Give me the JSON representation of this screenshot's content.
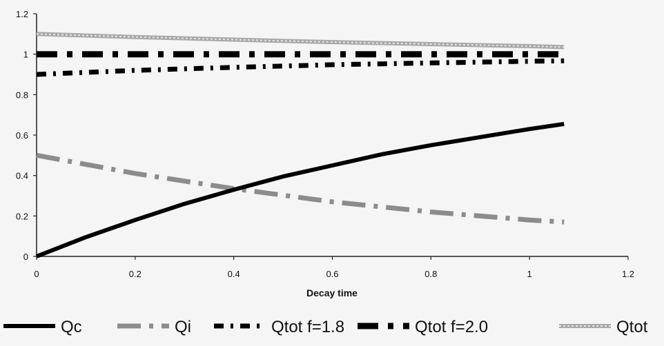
{
  "chart_data": {
    "type": "line",
    "title": "",
    "xlabel": "Decay time",
    "ylabel": "",
    "xlim": [
      0,
      1.2
    ],
    "ylim": [
      0,
      1.2
    ],
    "xticks": [
      "0",
      "0.2",
      "0.4",
      "0.6",
      "0.8",
      "1",
      "1.2"
    ],
    "yticks": [
      "0",
      "0.2",
      "0.4",
      "0.6",
      "0.8",
      "1",
      "1.2"
    ],
    "grid": false,
    "legend_position": "bottom",
    "series": [
      {
        "name": "Qc",
        "color": "#000000",
        "style": "solid-thick",
        "x": [
          0,
          0.1,
          0.2,
          0.3,
          0.4,
          0.5,
          0.6,
          0.7,
          0.8,
          0.9,
          1.0,
          1.07
        ],
        "y": [
          0,
          0.095,
          0.18,
          0.26,
          0.33,
          0.395,
          0.45,
          0.505,
          0.55,
          0.59,
          0.63,
          0.655
        ]
      },
      {
        "name": "Qi",
        "color": "#8c8c8c",
        "style": "dash-dot",
        "x": [
          0,
          0.2,
          0.4,
          0.6,
          0.8,
          1.0,
          1.07
        ],
        "y": [
          0.5,
          0.41,
          0.335,
          0.27,
          0.22,
          0.18,
          0.17
        ]
      },
      {
        "name": "Qtot f=1.8",
        "color": "#000000",
        "style": "dash-dot",
        "x": [
          0,
          0.2,
          0.4,
          0.6,
          0.8,
          1.0,
          1.07
        ],
        "y": [
          0.9,
          0.92,
          0.935,
          0.948,
          0.957,
          0.965,
          0.967
        ]
      },
      {
        "name": "Qtot f=2.0",
        "color": "#000000",
        "style": "dash-dot-thick",
        "x": [
          0,
          0.2,
          0.4,
          0.6,
          0.8,
          1.0,
          1.07
        ],
        "y": [
          1.0,
          1.0,
          1.0,
          1.0,
          1.0,
          1.0,
          1.0
        ]
      },
      {
        "name": "Qtot",
        "color": "#a8a8a8",
        "style": "solid-double",
        "x": [
          0,
          0.2,
          0.4,
          0.6,
          0.8,
          1.0,
          1.07
        ],
        "y": [
          1.1,
          1.085,
          1.072,
          1.06,
          1.05,
          1.04,
          1.035
        ]
      }
    ]
  }
}
